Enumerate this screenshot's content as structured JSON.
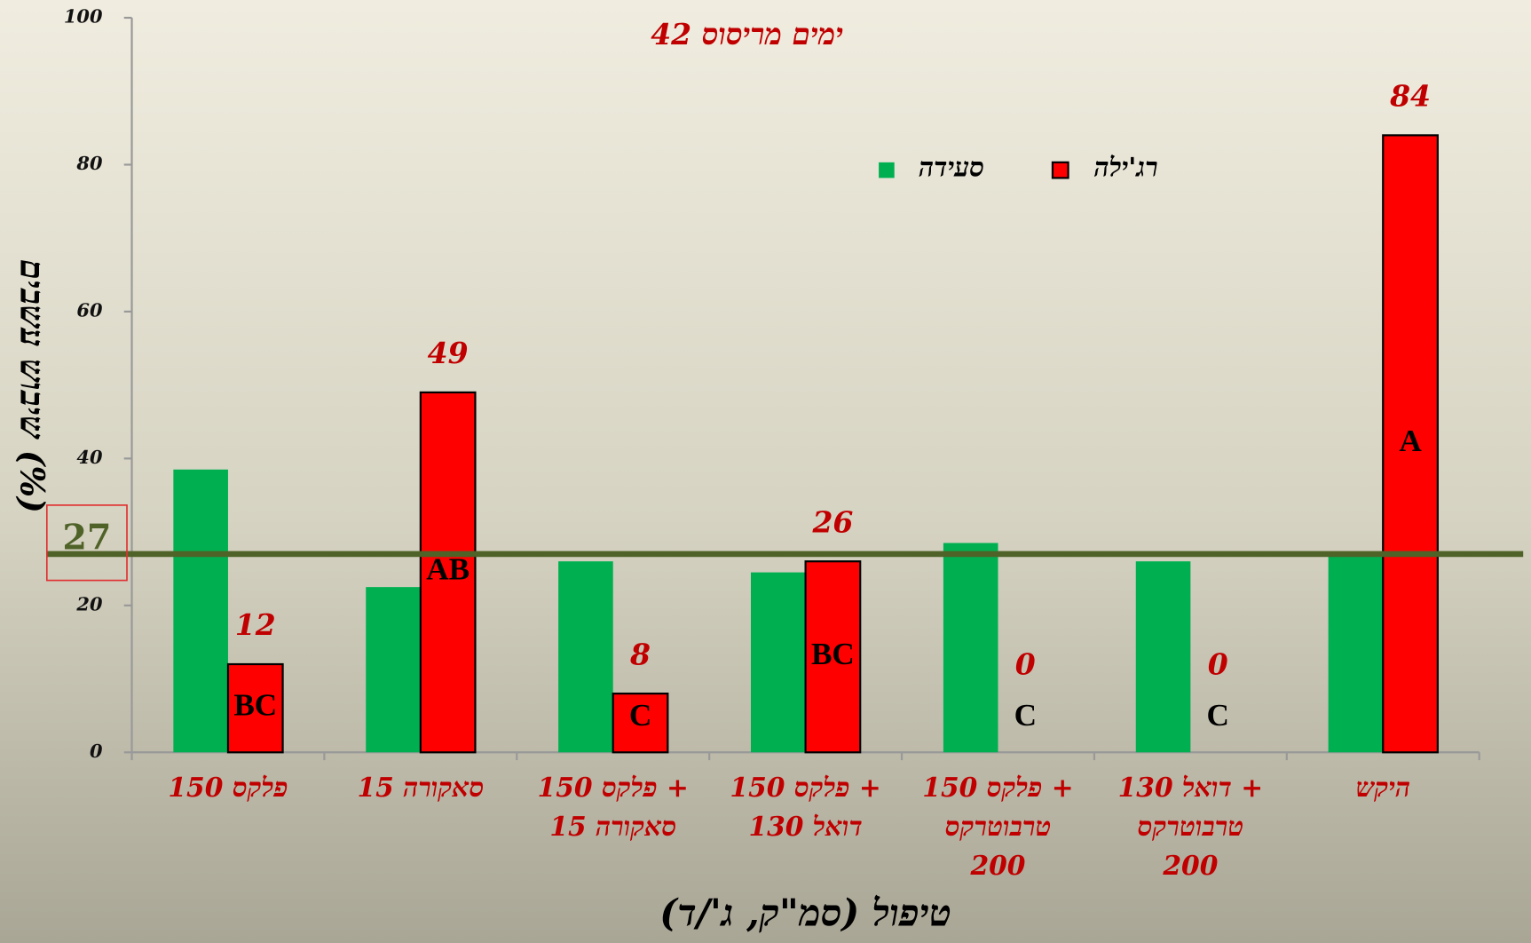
{
  "chart_data": {
    "type": "bar",
    "title": "42 ימים מריסוס",
    "y_label": "שיבוש עשבים (%)",
    "x_label": "טיפול (סמ\"ק, ג'/ד)",
    "categories": [
      [
        "פלקס 150"
      ],
      [
        "סאקורה 15"
      ],
      [
        "פלקס 150 +",
        "סאקורה 15"
      ],
      [
        "פלקס 150 +",
        "דואל 130"
      ],
      [
        "פלקס 150 +",
        "טרבוטרקס",
        "200"
      ],
      [
        "דואל 130 +",
        "טרבוטרקס",
        "200"
      ],
      [
        "היקש"
      ]
    ],
    "series": [
      {
        "name": "סעידה",
        "color": "#00b050",
        "values": [
          38.5,
          22.5,
          26,
          24.5,
          28.5,
          26,
          27
        ]
      },
      {
        "name": "רג'ילה",
        "color": "#ff0000",
        "values": [
          12,
          49,
          8,
          26,
          0,
          0,
          84
        ],
        "letters": [
          "BC",
          "AB",
          "C",
          "BC",
          "C",
          "C",
          "A"
        ]
      }
    ],
    "reference_line": {
      "value": 27,
      "label": "27",
      "color": "#4f6228"
    },
    "ylim": [
      0,
      100
    ],
    "yticks": [
      0,
      20,
      40,
      60,
      80,
      100
    ],
    "grid": false,
    "legend": "top"
  }
}
